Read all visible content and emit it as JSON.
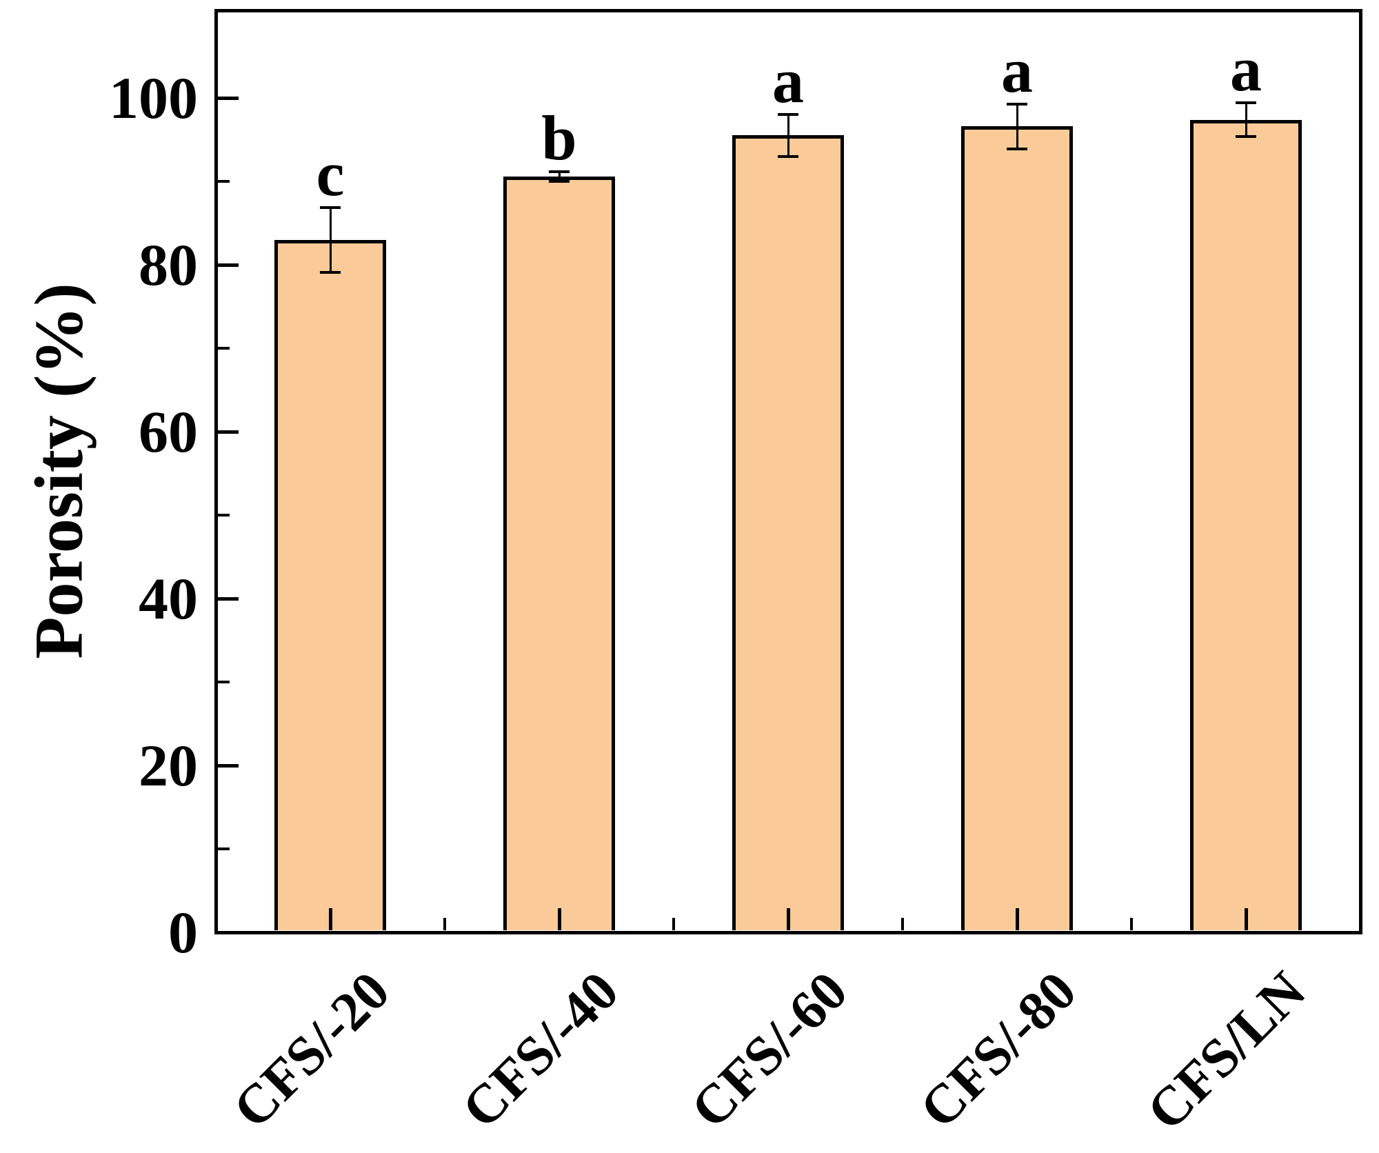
{
  "chart_data": {
    "type": "bar",
    "title": "",
    "xlabel": "",
    "ylabel": "Porosity (%)",
    "categories": [
      "CFS/-20",
      "CFS/-40",
      "CFS/-60",
      "CFS/-80",
      "CFS/LN"
    ],
    "values": [
      83.0,
      90.6,
      95.5,
      96.6,
      97.4
    ],
    "errors": [
      3.9,
      0.6,
      2.5,
      2.7,
      2.0
    ],
    "sig_letters": [
      "c",
      "b",
      "a",
      "a",
      "a"
    ],
    "ylim": [
      0,
      110.5
    ],
    "yticks_major": [
      0,
      20,
      40,
      60,
      80,
      100
    ],
    "yticks_minor": [
      10,
      30,
      50,
      70,
      90
    ],
    "bar_fill_color": "#FACB98",
    "bar_edge_color": "#000000",
    "axis_color": "#000000",
    "grid": "off",
    "legend": "none"
  }
}
